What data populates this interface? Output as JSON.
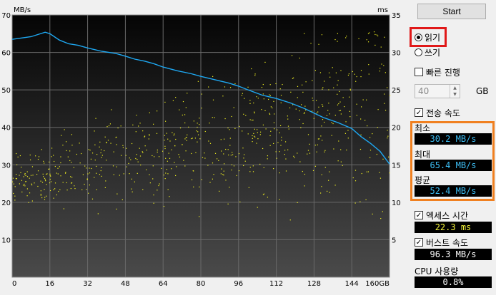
{
  "chart": {
    "left_unit": "MB/s",
    "right_unit": "ms",
    "y_left_ticks": [
      "70",
      "60",
      "50",
      "40",
      "30",
      "20",
      "10"
    ],
    "y_right_ticks": [
      "35",
      "30",
      "25",
      "20",
      "15",
      "10",
      "5"
    ],
    "x_ticks": [
      "0",
      "16",
      "32",
      "48",
      "64",
      "80",
      "96",
      "112",
      "128",
      "144",
      "160GB"
    ]
  },
  "chart_data": {
    "type": "line",
    "title": "",
    "xlabel": "",
    "ylabel": "MB/s",
    "y2label": "ms",
    "xlim": [
      0,
      160
    ],
    "ylim": [
      0,
      70
    ],
    "y2lim": [
      0,
      35
    ],
    "grid": true,
    "series": [
      {
        "name": "",
        "axis": "left",
        "color": "#1ea8f2",
        "x": [
          0,
          8,
          14,
          16,
          20,
          24,
          28,
          32,
          38,
          44,
          48,
          52,
          56,
          60,
          64,
          70,
          76,
          80,
          86,
          92,
          96,
          100,
          106,
          112,
          118,
          124,
          128,
          132,
          138,
          144,
          148,
          152,
          156,
          160
        ],
        "y": [
          63.5,
          64.2,
          65.4,
          65.0,
          63.3,
          62.3,
          61.9,
          61.2,
          60.3,
          59.7,
          59.0,
          58.2,
          57.7,
          57.0,
          56.1,
          55.1,
          54.3,
          53.6,
          52.7,
          51.8,
          51.0,
          50.0,
          48.6,
          47.7,
          46.5,
          45.0,
          43.8,
          42.6,
          41.3,
          39.7,
          37.5,
          35.7,
          33.6,
          30.2
        ]
      }
    ],
    "access_points": {
      "axis": "right",
      "color": "#f0f020",
      "note_count": 700
    }
  },
  "panel": {
    "start_label": "Start",
    "read_label": "읽기",
    "write_label": "쓰기",
    "quick_label": "빠른 진행",
    "size_value": "40",
    "size_unit": "GB",
    "transfer_label": "전송 속도",
    "min_label": "최소",
    "min_value": "30.2 MB/s",
    "max_label": "최대",
    "max_value": "65.4 MB/s",
    "avg_label": "평균",
    "avg_value": "52.4 MB/s",
    "access_label": "엑세스 시간",
    "access_value": "22.3 ms",
    "burst_label": "버스트 속도",
    "burst_value": "96.3 MB/s",
    "cpu_label": "CPU 사용량",
    "cpu_value": "0.8%"
  }
}
